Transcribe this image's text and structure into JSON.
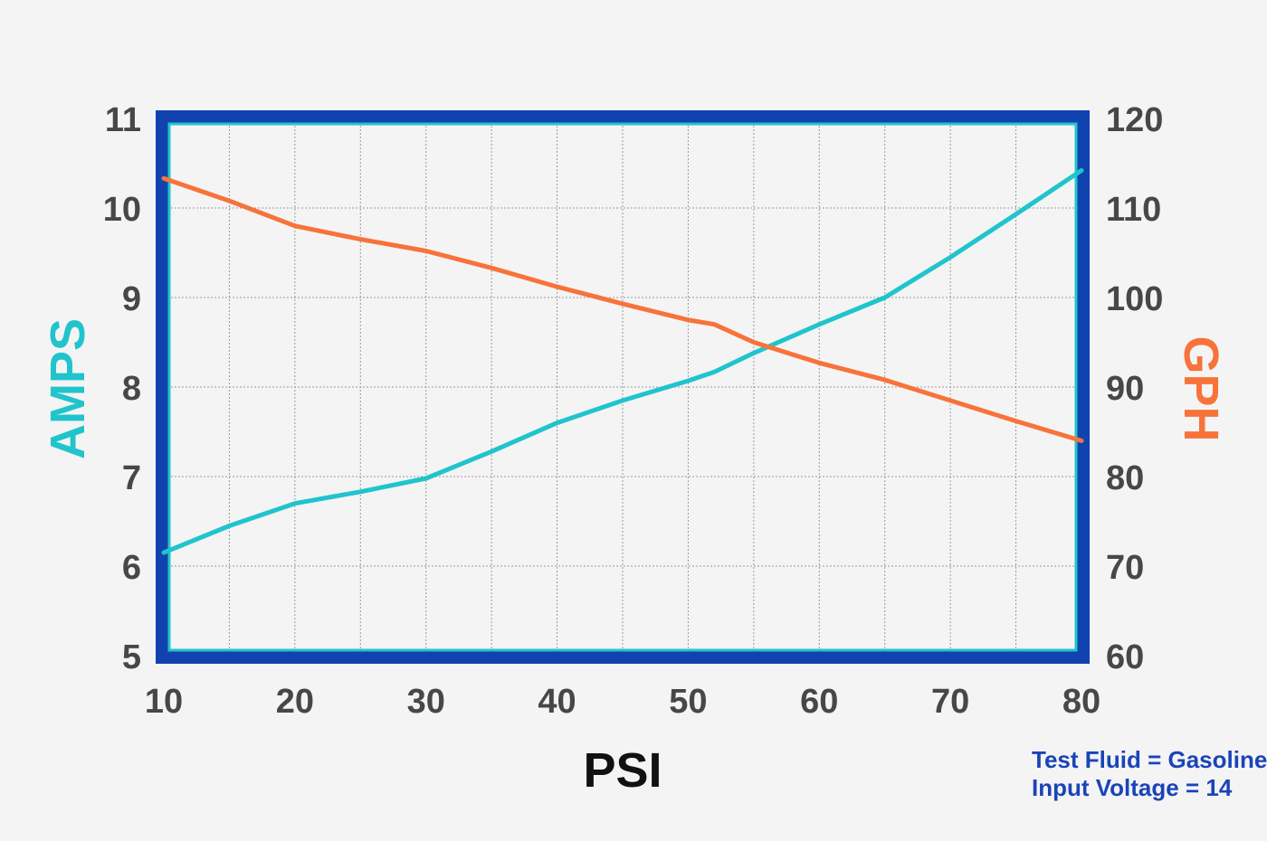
{
  "chart_data": {
    "type": "line",
    "x": [
      10,
      15,
      20,
      25,
      30,
      35,
      40,
      45,
      50,
      52,
      55,
      60,
      65,
      70,
      75,
      80
    ],
    "xlabel": "PSI",
    "xlim": [
      10,
      80
    ],
    "xticks": [
      "10",
      "20",
      "30",
      "40",
      "50",
      "60",
      "70",
      "80"
    ],
    "y_left": {
      "label": "AMPS",
      "lim": [
        5,
        11
      ],
      "ticks": [
        "5",
        "6",
        "7",
        "8",
        "9",
        "10",
        "11"
      ]
    },
    "y_right": {
      "label": "GPH",
      "lim": [
        60,
        120
      ],
      "ticks": [
        "60",
        "70",
        "80",
        "90",
        "100",
        "110",
        "120"
      ]
    },
    "series": [
      {
        "name": "AMPS",
        "axis": "left",
        "color": "#20c4cc",
        "values": [
          6.15,
          6.45,
          6.7,
          6.83,
          6.98,
          7.28,
          7.6,
          7.85,
          8.07,
          8.17,
          8.38,
          8.7,
          9.0,
          9.45,
          9.93,
          10.42
        ]
      },
      {
        "name": "GPH",
        "axis": "right",
        "color": "#f7733a",
        "values": [
          113.3,
          110.8,
          108.0,
          106.5,
          105.2,
          103.3,
          101.2,
          99.3,
          97.5,
          97.0,
          95.0,
          92.7,
          90.8,
          88.5,
          86.2,
          84.0
        ]
      }
    ],
    "grid": true,
    "annotations": [
      "Test Fluid = Gasoline",
      "Input Voltage = 14"
    ]
  },
  "colors": {
    "background": "#f4f4f4",
    "frame_outer": "#1143b0",
    "frame_inner": "#20c4cc",
    "grid": "#9a9a9a",
    "tick_text": "#474747",
    "x_title": "#111111",
    "note_text": "#1a44b8"
  }
}
